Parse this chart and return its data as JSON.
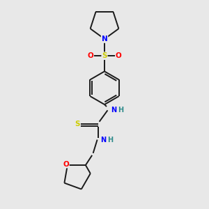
{
  "bg_color": "#e8e8e8",
  "bond_color": "#1a1a1a",
  "atom_colors": {
    "N": "#0000ff",
    "S": "#cccc00",
    "O": "#ff0000",
    "H": "#2e8b8b",
    "C": "#1a1a1a"
  },
  "figsize": [
    3.0,
    3.0
  ],
  "dpi": 100,
  "lw": 1.4
}
